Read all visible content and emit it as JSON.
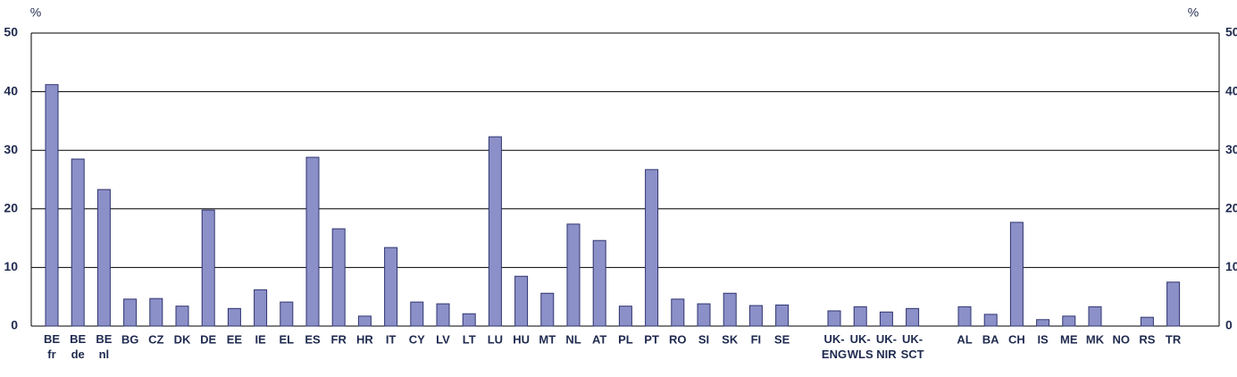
{
  "chart_data": {
    "type": "bar",
    "y_unit_label": "%",
    "categories": [
      "BE\nfr",
      "BE\nde",
      "BE\nnl",
      "BG",
      "CZ",
      "DK",
      "DE",
      "EE",
      "IE",
      "EL",
      "ES",
      "FR",
      "HR",
      "IT",
      "CY",
      "LV",
      "LT",
      "LU",
      "HU",
      "MT",
      "NL",
      "AT",
      "PL",
      "PT",
      "RO",
      "SI",
      "SK",
      "FI",
      "SE",
      null,
      "UK-\nENG",
      "UK-\nWLS",
      "UK-\nNIR",
      "UK-\nSCT",
      null,
      "AL",
      "BA",
      "CH",
      "IS",
      "ME",
      "MK",
      "NO",
      "RS",
      "TR"
    ],
    "values": [
      41.2,
      28.5,
      23.3,
      4.6,
      4.7,
      3.4,
      19.8,
      3.0,
      6.2,
      4.1,
      28.8,
      16.6,
      1.7,
      13.4,
      4.1,
      3.8,
      2.1,
      32.3,
      8.5,
      5.6,
      17.4,
      14.6,
      3.4,
      26.7,
      4.6,
      3.8,
      5.6,
      3.5,
      3.6,
      null,
      2.6,
      3.3,
      2.4,
      3.0,
      null,
      3.3,
      2.0,
      17.7,
      1.1,
      1.7,
      3.3,
      null,
      1.5,
      7.5
    ],
    "color": "#8c90c8",
    "ylim": [
      0,
      50
    ],
    "yticks": [
      0,
      10,
      20,
      30,
      40,
      50
    ],
    "grid": true,
    "right_axis": true
  }
}
